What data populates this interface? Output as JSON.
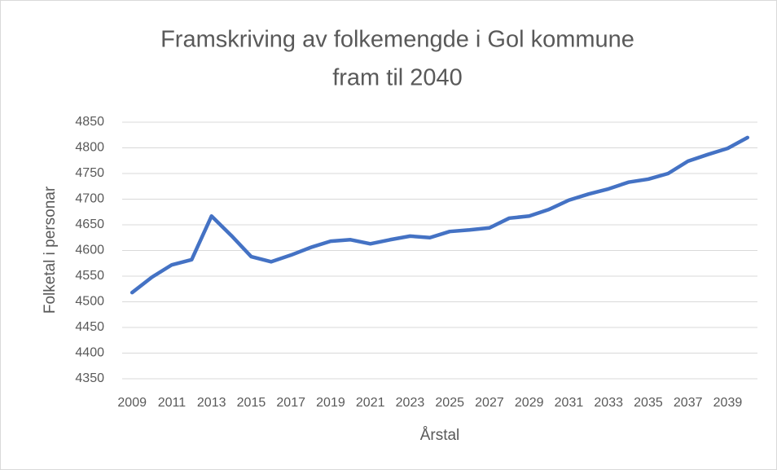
{
  "chart_data": {
    "type": "line",
    "title": [
      "Framskriving av folkemengde i Gol kommune",
      "fram til 2040"
    ],
    "x_label": "Årstal",
    "y_label": "Folketal i personar",
    "x": [
      2009,
      2010,
      2011,
      2012,
      2013,
      2014,
      2015,
      2016,
      2017,
      2018,
      2019,
      2020,
      2021,
      2022,
      2023,
      2024,
      2025,
      2026,
      2027,
      2028,
      2029,
      2030,
      2031,
      2032,
      2033,
      2034,
      2035,
      2036,
      2037,
      2038,
      2039,
      2040
    ],
    "series": [
      {
        "name": "Folketal",
        "color": "#4472c4",
        "values": [
          4518,
          4548,
          4572,
          4582,
          4667,
          4629,
          4588,
          4578,
          4591,
          4606,
          4618,
          4621,
          4613,
          4621,
          4628,
          4625,
          4637,
          4640,
          4644,
          4663,
          4667,
          4680,
          4698,
          4710,
          4720,
          4733,
          4739,
          4750,
          4774,
          4787,
          4799,
          4820
        ]
      }
    ],
    "xlim": [
      2008.5,
      2040.5
    ],
    "xticks": [
      2009,
      2011,
      2013,
      2015,
      2017,
      2019,
      2021,
      2023,
      2025,
      2027,
      2029,
      2031,
      2033,
      2035,
      2037,
      2039
    ],
    "ylim": [
      4350,
      4850
    ],
    "yticks": [
      4350,
      4400,
      4450,
      4500,
      4550,
      4600,
      4650,
      4700,
      4750,
      4800,
      4850
    ],
    "grid": true
  }
}
